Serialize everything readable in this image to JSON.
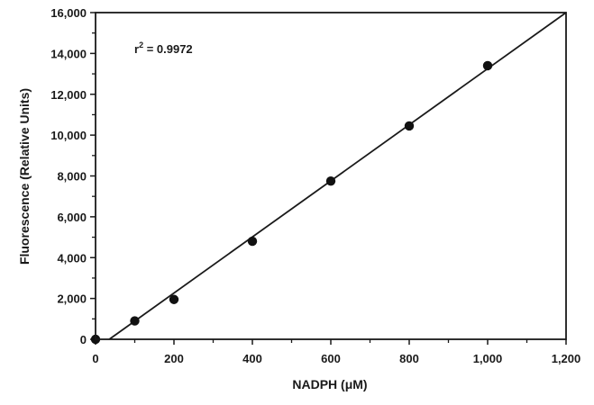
{
  "chart_data": {
    "type": "scatter",
    "title": "",
    "xlabel": "NADPH (μM)",
    "ylabel": "Fluorescence (Relative Units)",
    "xlim": [
      0,
      1200
    ],
    "ylim": [
      0,
      16000
    ],
    "x_ticks": [
      0,
      200,
      400,
      600,
      800,
      1000,
      1200
    ],
    "x_tick_labels": [
      "0",
      "200",
      "400",
      "600",
      "800",
      "1,000",
      "1,200"
    ],
    "y_ticks": [
      0,
      2000,
      4000,
      6000,
      8000,
      10000,
      12000,
      14000,
      16000
    ],
    "y_tick_labels": [
      "0",
      "2,000",
      "4,000",
      "6,000",
      "8,000",
      "10,000",
      "12,000",
      "14,000",
      "16,000"
    ],
    "grid": false,
    "legend": "none",
    "series": [
      {
        "x": [
          0,
          100,
          200,
          400,
          600,
          800,
          1000
        ],
        "y": [
          0,
          900,
          1950,
          4800,
          7750,
          10450,
          13400
        ]
      }
    ],
    "fit_line": {
      "x": [
        35,
        1200
      ],
      "y": [
        0,
        16000
      ]
    },
    "annotation": {
      "r_label": "r",
      "r_exp": "2",
      "r_value": " = 0.9972"
    },
    "colors": {
      "marker": "#111111",
      "line": "#1a1a1a"
    }
  }
}
